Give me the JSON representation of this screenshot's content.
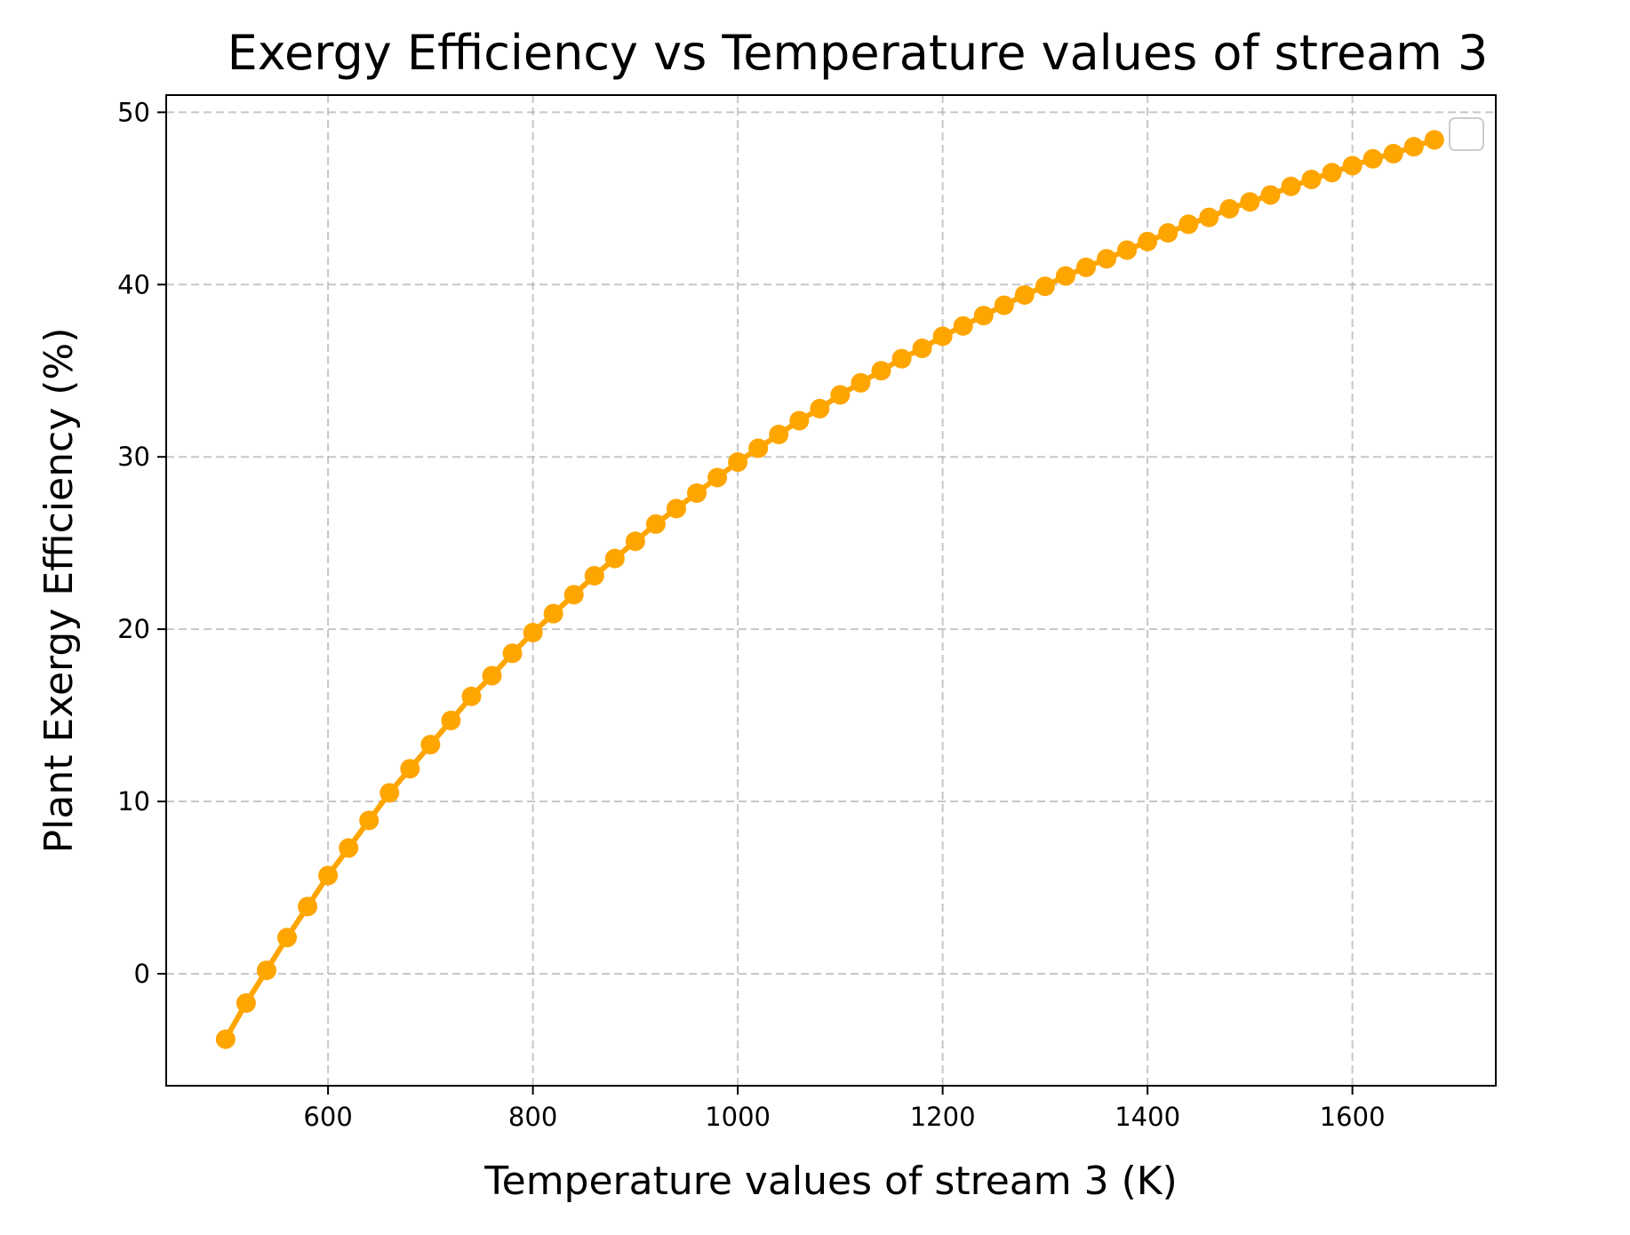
{
  "chart_data": {
    "type": "line",
    "title": "Exergy Efficiency vs Temperature values of stream 3",
    "xlabel": "Temperature values of stream 3 (K)",
    "ylabel": "Plant Exergy Efficiency (%)",
    "xlim": [
      442,
      1740
    ],
    "ylim": [
      -6.5,
      51
    ],
    "xticks": [
      600,
      800,
      1000,
      1200,
      1400,
      1600
    ],
    "yticks": [
      0,
      10,
      20,
      30,
      40,
      50
    ],
    "grid": true,
    "legend": "top-right (empty)",
    "color": "#ffa500",
    "series": [
      {
        "marker": "circle",
        "x": [
          500,
          520,
          540,
          560,
          580,
          600,
          620,
          640,
          660,
          680,
          700,
          720,
          740,
          760,
          780,
          800,
          820,
          840,
          860,
          880,
          900,
          920,
          940,
          960,
          980,
          1000,
          1020,
          1040,
          1060,
          1080,
          1100,
          1120,
          1140,
          1160,
          1180,
          1200,
          1220,
          1240,
          1260,
          1280,
          1300,
          1320,
          1340,
          1360,
          1380,
          1400,
          1420,
          1440,
          1460,
          1480,
          1500,
          1520,
          1540,
          1560,
          1580,
          1600,
          1620,
          1640,
          1660,
          1680
        ],
        "values": [
          -3.8,
          -1.7,
          0.2,
          2.1,
          3.9,
          5.7,
          7.3,
          8.9,
          10.5,
          11.9,
          13.3,
          14.7,
          16.1,
          17.3,
          18.6,
          19.8,
          20.9,
          22.0,
          23.1,
          24.1,
          25.1,
          26.1,
          27.0,
          27.9,
          28.8,
          29.7,
          30.5,
          31.3,
          32.1,
          32.8,
          33.6,
          34.3,
          35.0,
          35.7,
          36.3,
          37.0,
          37.6,
          38.2,
          38.8,
          39.4,
          39.9,
          40.5,
          41.0,
          41.5,
          42.0,
          42.5,
          43.0,
          43.5,
          43.9,
          44.4,
          44.8,
          45.2,
          45.7,
          46.1,
          46.5,
          46.9,
          47.3,
          47.6,
          48.0,
          48.4
        ]
      }
    ]
  }
}
